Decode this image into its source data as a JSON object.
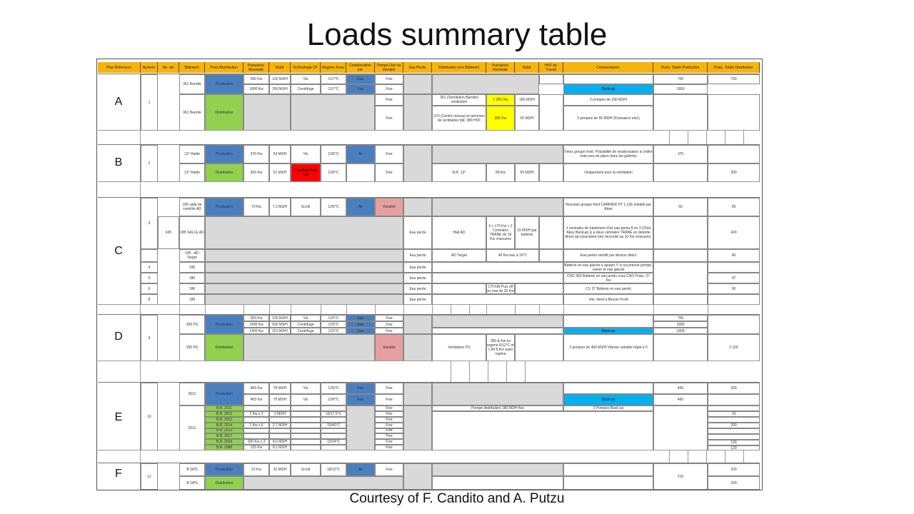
{
  "title": "Loads summary table",
  "credit": "Courtesy of F. Candito and A. Putzu",
  "header": [
    "Plan Reference",
    "Numero",
    "No. sol",
    "Bâtiment",
    "Prod./Distribution",
    "Puissance Nominale",
    "Debit",
    "Technologie CF",
    "Regime d'eau",
    "Condensation par",
    "Pompe Fixe ou Variable",
    "Eau Perdu",
    "Distribution vers Bâtiment",
    "Puissance Nominale",
    "Debit",
    "HVF de Travail",
    "Commentaires",
    "Puiss. Totale Production",
    "Puiss. Totale Distribution"
  ],
  "zones": [
    "A",
    "B",
    "C",
    "D",
    "E",
    "F"
  ],
  "colors": {
    "header": "#f6b40f",
    "production": "#4a7fbf",
    "distribution": "#92d050",
    "none": "#d9d9d9",
    "yellow": "#ffff00",
    "red": "#ff0000",
    "pink": "#e6a0a0",
    "backup": "#00b0f0"
  },
  "a": {
    "num": "1",
    "bat1": "361 Barotte",
    "bat2": "361 Barotte",
    "prod": "Production",
    "dist": "Distribution",
    "r1": [
      "350 Kw",
      "130 M3/H",
      "Vis",
      "11/7°C",
      "Eau",
      "Fixe"
    ],
    "r2": [
      "1800 Kw",
      "269 M3/H",
      "Centrifuge",
      "11/7°C",
      "Eau",
      "Fixe"
    ],
    "r3": [
      "Fixe",
      "361 (Ventilation Barotte) ventilation",
      "1 250 Kw",
      "180 M3/H",
      "2 pompes de 180 M3/H"
    ],
    "r4": [
      "Fixe",
      "370 (Centre réseau) et armoires de ventilation bât. 380 HVF",
      "385 Kw",
      "55 M3/H",
      "2 pompes de 55 M3/H (Puissance elec)"
    ],
    "backup": "Back-up",
    "totp1": "700",
    "totd1": "700",
    "totp2": "1800"
  },
  "b": {
    "num": "2",
    "bat1": "13° Halde",
    "bat2": "13° Halde",
    "r1": [
      "370 Kw",
      "54 M3/H",
      "Vis",
      "12/6°C",
      "Air",
      "Fixe"
    ],
    "r2": [
      "305 Kw",
      "51 M3/H",
      "Chauffage Anti-Gel",
      "12/6°C",
      "Fixe",
      "B.R. 13° ",
      "89 Kw",
      "55 M3/H"
    ],
    "c1": "Vieux groupe froid. Possibilité de revalorisation si chiller mais peu de place dans les galeries",
    "c2": "Uniquement pour la ventilation",
    "totp": "370",
    "totd": "300"
  },
  "c": {
    "n1": "3",
    "sol": "435",
    "bat1": "185 salle de contrôle AD",
    "bat2": "185 SALLE AD",
    "bat3": "185 - AD Target",
    "r1": [
      "70 Kw",
      "7.2 M3/H",
      "Scroll",
      "12/6°C",
      "Air",
      "Variable"
    ],
    "c1": "Nouveau groupe froid CARRIER HT 1.13E installé par Akee",
    "ep": "Eau perdu",
    "dist1": "Hall AD",
    "p1": "3 x 170 Kw + 2 Centrales TRANE de 16 Kw chacunes",
    "d1": "10 M3/H par batterie",
    "c2": "3 centrales de traitement d'air eau perdu 8 en 3 (Chet Akey Backup) ly a deux centrales TRANE en detente direct qui pourraient etre raccordé au 10 Kw chacunes.",
    "dist2": "AD Target",
    "p2": "40 Kw eau à 16°C",
    "c3": "Eau perdu ventilé par dessus direct",
    "rows": [
      {
        "n": "4",
        "bat": "195",
        "c": "Batterie en eau glacée a ajouter Y si oui prevoir pompe, vanne et eau glacée"
      },
      {
        "n": "5",
        "bat": "180",
        "c": "CW2 400 Batterie en eau perdu sous CAO Puiss. 37 Kw"
      },
      {
        "n": "6",
        "bat": "186",
        "p": "170 kW Puis eff ev eau de 20 Kw",
        "c": "CV 37 Batterie en eau perdu"
      },
      {
        "n": "8",
        "bat": "189",
        "c": "Voir client à Besoin Froid"
      }
    ],
    "t1": "50",
    "t2": "50",
    "t3": "420",
    "t4": "40",
    "t5": "37",
    "t6": "30"
  },
  "d": {
    "num": "9",
    "bat1": "355 PS",
    "bat2": "355 PS",
    "r1": [
      "350 Kw",
      "130 M3/H",
      "Vis",
      "11/5°C",
      "Eau",
      "Fixe"
    ],
    "r2": [
      "1400 Kw",
      "500 M3/H",
      "Centrifuge",
      "11/5°C",
      "Eau",
      "Fixe"
    ],
    "r3": [
      "1400 Kw",
      "201 M3/H",
      "Centrifuge",
      "11/5°C",
      "Eau",
      "Fixe"
    ],
    "backup": "Back-up",
    "var": "Variable",
    "dist": "Ventilation PS",
    "p": "350 & Kw en regime 6/12°C et 1 84.5 Kw autre regime",
    "c": "2 pompes de 400 M3/H Vitesse variable réglé à 0",
    "t1": "700",
    "t2": "1800",
    "t3": "1800",
    "t4": "2 100"
  },
  "e": {
    "num": "10",
    "bat1": "2011",
    "bat2": "2011",
    "r1": [
      "465 Kw",
      "78 M3/H",
      "Vis",
      "12/6°C",
      "Eau",
      "Fixe"
    ],
    "r2": [
      "465 Kw",
      "78 M3/H",
      "Vis",
      "12/6°C",
      "Eau",
      "Fixe"
    ],
    "backup": "Back-up",
    "sub": [
      {
        "b": "B.R. 2011",
        "p": "",
        "d": "",
        "r": "",
        "f": "Fixe"
      },
      {
        "b": "B.R. 2012",
        "p": "2 Kw x 2",
        "d": "2 M3/H",
        "r": "10/17.5°C",
        "f": "Fixe"
      },
      {
        "b": "B.R. 2013",
        "p": "",
        "d": "",
        "r": "",
        "f": "Fixe"
      },
      {
        "b": "B.R. 2014",
        "p": "1 Kw x 6",
        "d": "2.7 M3/H",
        "r": "15/40°C",
        "f": "Fixe"
      },
      {
        "b": "B.R. 2016",
        "p": "",
        "d": "",
        "r": "",
        "f": "Fixe"
      },
      {
        "b": "B.R. 2017",
        "p": "",
        "d": "",
        "r": "",
        "f": "Fixe"
      },
      {
        "b": "B.R. 2018",
        "p": "100 Kw x 2",
        "d": "8.6 M3/H",
        "r": "12/24°C",
        "f": "Fixe"
      },
      {
        "b": "B.R. 2088",
        "p": "125 Kw",
        "d": "8.1 M3/H",
        "r": "",
        "f": "Fixe"
      }
    ],
    "pd": "Pompe distribution 180 M3/H fixe",
    "c": "2 Pompes Back-up",
    "t1": "465",
    "t2": "300",
    "t3": "465",
    "t4": "10",
    "t5": "200",
    "t6": "120",
    "t7": "120"
  },
  "f": {
    "num": "11",
    "bat1": "B GPS",
    "bat2": "B GPS",
    "r1": [
      "22 Kw",
      "32 M3/H",
      "Scroll",
      "18/12°C",
      "Air",
      "Fixe"
    ],
    "t1": "210",
    "t2": "100",
    "t3": "100"
  }
}
